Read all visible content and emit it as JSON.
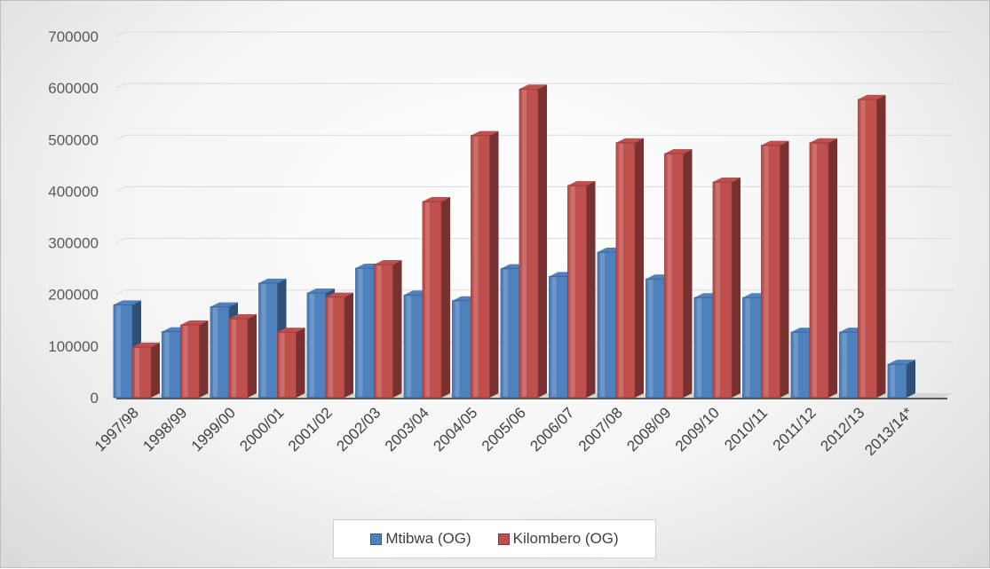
{
  "chart_data": {
    "type": "bar",
    "style": "3d-clustered-column",
    "categories": [
      "1997/98",
      "1998/99",
      "1999/00",
      "2000/01",
      "2001/02",
      "2002/03",
      "2003/04",
      "2004/05",
      "2005/06",
      "2006/07",
      "2007/08",
      "2008/09",
      "2009/10",
      "2010/11",
      "2011/12",
      "2012/13",
      "2013/14*"
    ],
    "series": [
      {
        "name": "Mtibwa (OG)",
        "color": "#4f81bd",
        "values": [
          180000,
          128000,
          176000,
          222000,
          203000,
          251000,
          199000,
          188000,
          250000,
          235000,
          282000,
          230000,
          194000,
          194000,
          127000,
          127000,
          65000
        ]
      },
      {
        "name": "Kilombero (OG)",
        "color": "#c0504d",
        "values": [
          98000,
          141000,
          153000,
          127000,
          195000,
          258000,
          380000,
          508000,
          598000,
          411000,
          494000,
          473000,
          418000,
          489000,
          494000,
          578000,
          null
        ]
      }
    ],
    "yticks": [
      "0",
      "100000",
      "200000",
      "300000",
      "400000",
      "500000",
      "600000",
      "700000"
    ],
    "ylim": [
      0,
      700000
    ],
    "grid": true,
    "legend_position": "bottom"
  }
}
